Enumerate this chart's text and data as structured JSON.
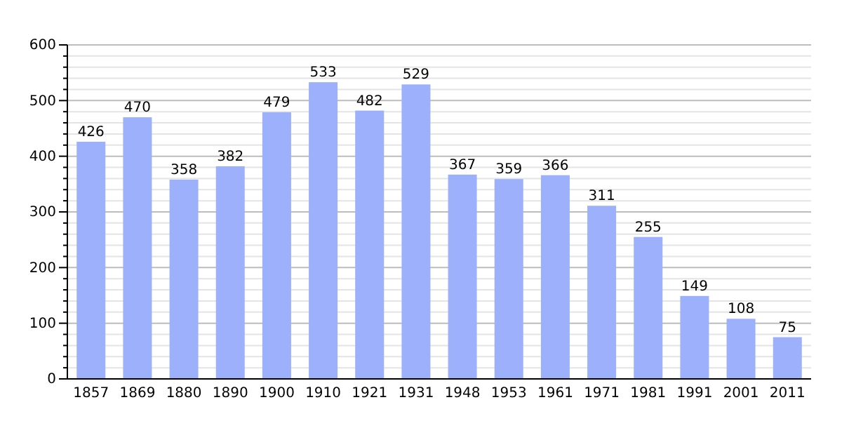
{
  "chart_data": {
    "type": "bar",
    "categories": [
      "1857",
      "1869",
      "1880",
      "1890",
      "1900",
      "1910",
      "1921",
      "1931",
      "1948",
      "1953",
      "1961",
      "1971",
      "1981",
      "1991",
      "2001",
      "2011"
    ],
    "values": [
      426,
      470,
      358,
      382,
      479,
      533,
      482,
      529,
      367,
      359,
      366,
      311,
      255,
      149,
      108,
      75
    ],
    "color": "#9db0fc",
    "data_labels": true,
    "grid": "y",
    "ylim": [
      0,
      600
    ],
    "yticks": [
      0,
      {
        "value": 20,
        "label": null
      },
      {
        "value": 40,
        "label": null
      },
      {
        "value": 60,
        "label": null
      },
      {
        "value": 80,
        "label": null
      },
      100,
      {
        "value": 120,
        "label": null
      },
      {
        "value": 140,
        "label": null
      },
      {
        "value": 160,
        "label": null
      },
      {
        "value": 180,
        "label": null
      },
      200,
      {
        "value": 220,
        "label": null
      },
      {
        "value": 240,
        "label": null
      },
      {
        "value": 260,
        "label": null
      },
      {
        "value": 280,
        "label": null
      },
      300,
      {
        "value": 320,
        "label": null
      },
      {
        "value": 340,
        "label": null
      },
      {
        "value": 360,
        "label": null
      },
      {
        "value": 380,
        "label": null
      },
      400,
      {
        "value": 420,
        "label": null
      },
      {
        "value": 440,
        "label": null
      },
      {
        "value": 460,
        "label": null
      },
      {
        "value": 480,
        "label": null
      },
      500,
      {
        "value": 520,
        "label": null
      },
      {
        "value": 540,
        "label": null
      },
      {
        "value": 560,
        "label": null
      },
      {
        "value": 580,
        "label": null
      },
      600
    ]
  }
}
